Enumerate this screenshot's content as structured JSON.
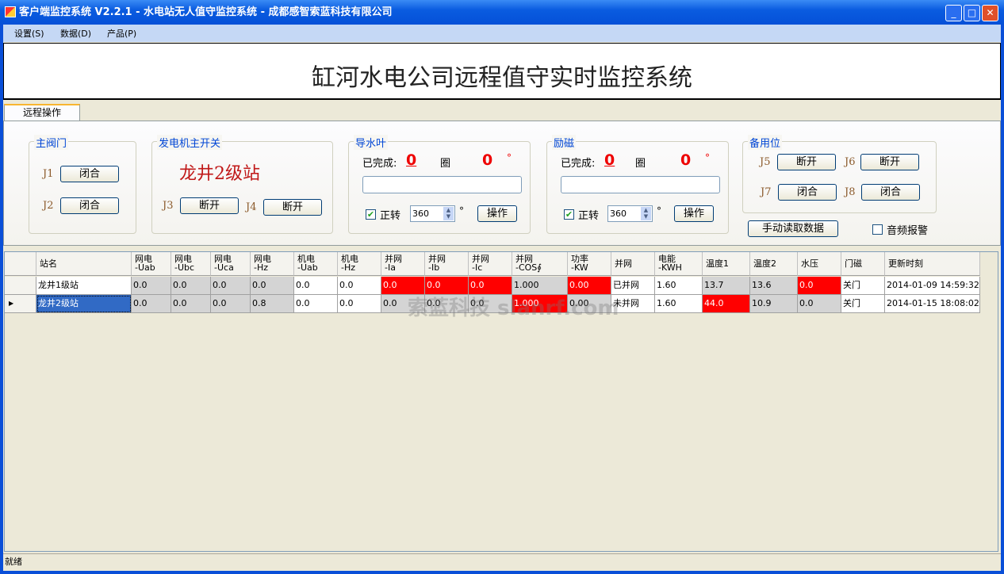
{
  "window": {
    "title": "客户端监控系统 V2.2.1 - 水电站无人值守监控系统 - 成都感智索蓝科技有限公司",
    "minimize": "_",
    "maximize": "□",
    "close": "✕"
  },
  "menu": [
    "设置(S)",
    "数据(D)",
    "产品(P)"
  ],
  "banner": "缸河水电公司远程值守实时监控系统",
  "tab": "远程操作",
  "groups": {
    "main_valve": {
      "title": "主阀门",
      "j1": "J1",
      "j1_btn": "闭合",
      "j2": "J2",
      "j2_btn": "闭合"
    },
    "generator": {
      "title": "发电机主开关",
      "station": "龙井2级站",
      "j3": "J3",
      "j3_btn": "断开",
      "j4": "J4",
      "j4_btn": "断开"
    },
    "guide_vane": {
      "title": "导水叶",
      "done_label": "已完成:",
      "done_value": "0",
      "circle_label": "圈",
      "degree_value": "0",
      "degree_unit": "°",
      "progress_value": "",
      "forward_label": "正转",
      "forward_checked": true,
      "angle": "360",
      "angle_unit": "°",
      "op_btn": "操作"
    },
    "excitation": {
      "title": "励磁",
      "done_label": "已完成:",
      "done_value": "0",
      "circle_label": "圈",
      "degree_value": "0",
      "degree_unit": "°",
      "progress_value": "",
      "forward_label": "正转",
      "forward_checked": true,
      "angle": "360",
      "angle_unit": "°",
      "op_btn": "操作"
    },
    "spare": {
      "title": "备用位",
      "j5": "J5",
      "j5_btn": "断开",
      "j6": "J6",
      "j6_btn": "断开",
      "j7": "J7",
      "j7_btn": "闭合",
      "j8": "J8",
      "j8_btn": "闭合"
    }
  },
  "manual_read_btn": "手动读取数据",
  "audio_alarm": {
    "label": "音频报警",
    "checked": false
  },
  "table": {
    "columns": [
      "站名",
      "网电\n-Uab",
      "网电\n-Ubc",
      "网电\n-Uca",
      "网电\n-Hz",
      "机电\n-Uab",
      "机电\n-Hz",
      "并网\n-Ia",
      "并网\n-Ib",
      "并网\n-Ic",
      "并网\n-COS∮",
      "功率\n-KW",
      "并网",
      "电能\n-KWH",
      "温度1",
      "温度2",
      "水压",
      "门磁",
      "更新时刻"
    ],
    "rows": [
      {
        "cells": [
          "龙井1级站",
          "0.0",
          "0.0",
          "0.0",
          "0.0",
          "0.0",
          "0.0",
          "0.0",
          "0.0",
          "0.0",
          "1.000",
          "0.00",
          "已并网",
          "1.60",
          "13.7",
          "13.6",
          "0.0",
          "关门",
          "2014-01-09 14:59:32"
        ],
        "colors": [
          "#ffffff",
          "#d4d4d4",
          "#d4d4d4",
          "#d4d4d4",
          "#d4d4d4",
          "#ffffff",
          "#ffffff",
          "#ff0000",
          "#ff0000",
          "#ff0000",
          "#d4d4d4",
          "#ff0000",
          "#ffffff",
          "#ffffff",
          "#d4d4d4",
          "#d4d4d4",
          "#ff0000",
          "#ffffff",
          "#ffffff"
        ],
        "current": false
      },
      {
        "cells": [
          "龙井2级站",
          "0.0",
          "0.0",
          "0.0",
          "0.8",
          "0.0",
          "0.0",
          "0.0",
          "0.0",
          "0.0",
          "1.000",
          "0.00",
          "未并网",
          "1.60",
          "44.0",
          "10.9",
          "0.0",
          "关门",
          "2014-01-15 18:08:02"
        ],
        "colors": [
          "#316ac5",
          "#d4d4d4",
          "#d4d4d4",
          "#d4d4d4",
          "#d4d4d4",
          "#ffffff",
          "#ffffff",
          "#d4d4d4",
          "#d4d4d4",
          "#d4d4d4",
          "#ff0000",
          "#d4d4d4",
          "#ffffff",
          "#ffffff",
          "#ff0000",
          "#d4d4d4",
          "#d4d4d4",
          "#ffffff",
          "#ffffff"
        ],
        "current": true
      }
    ]
  },
  "watermark": "索蓝科技 slanrf.com",
  "status": "就绪"
}
